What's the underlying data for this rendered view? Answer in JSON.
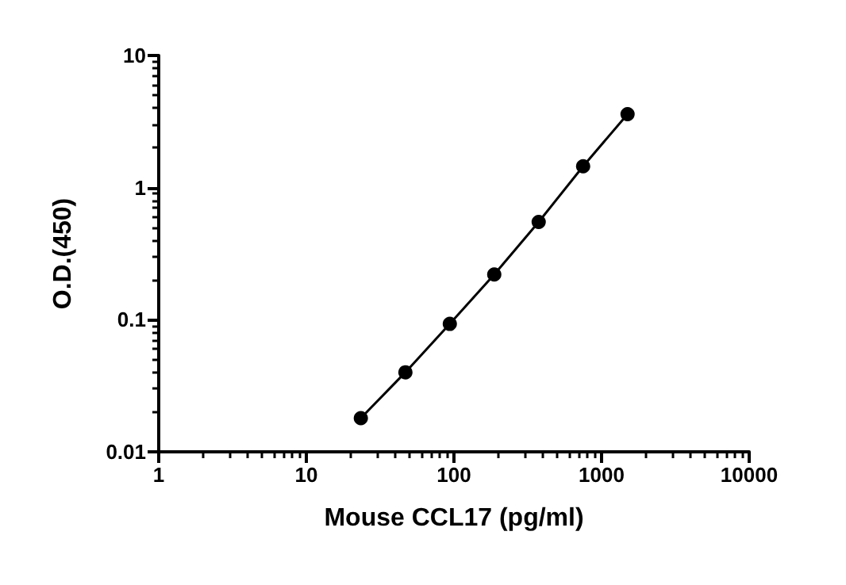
{
  "chart_data": {
    "type": "line",
    "xlabel": "Mouse CCL17 (pg/ml)",
    "ylabel": "O.D.(450)",
    "x": [
      23.4,
      46.9,
      93.75,
      187.5,
      375,
      750,
      1500
    ],
    "series": [
      {
        "color": "#000000",
        "values": [
          0.018,
          0.04,
          0.093,
          0.22,
          0.55,
          1.45,
          3.6
        ]
      }
    ],
    "log": "xy",
    "xlim": [
      1,
      10000
    ],
    "ylim": [
      0.01,
      10
    ],
    "xticks": [
      1,
      10,
      100,
      1000,
      10000
    ],
    "yticks": [
      0.01,
      0.1,
      1,
      10
    ],
    "grid": false,
    "marker": "circle",
    "line_style": "solid"
  }
}
